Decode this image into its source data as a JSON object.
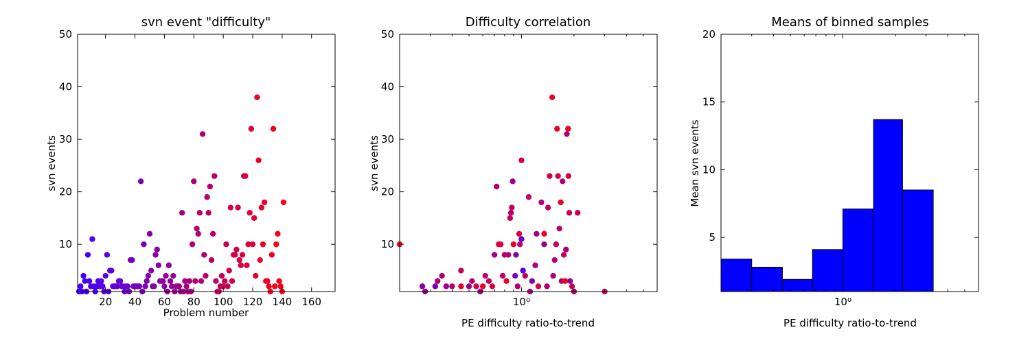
{
  "chart_data": [
    {
      "type": "scatter",
      "title": "svn event \"difficulty\"",
      "xlabel": "Problem number",
      "ylabel": "svn events",
      "xlim": [
        1,
        176
      ],
      "ylim": [
        1,
        50
      ],
      "xticks": [
        20,
        40,
        60,
        80,
        100,
        120,
        140,
        160
      ],
      "yticks": [
        10,
        20,
        30,
        40,
        50
      ],
      "color_gradient": [
        "#4000ff",
        "#ff0010"
      ],
      "points": [
        [
          2,
          1
        ],
        [
          3,
          2
        ],
        [
          4,
          1
        ],
        [
          5,
          4
        ],
        [
          6,
          3
        ],
        [
          7,
          1
        ],
        [
          8,
          8
        ],
        [
          9,
          3
        ],
        [
          10,
          2
        ],
        [
          11,
          11
        ],
        [
          12,
          2
        ],
        [
          13,
          1
        ],
        [
          14,
          2
        ],
        [
          15,
          3
        ],
        [
          16,
          2
        ],
        [
          17,
          3
        ],
        [
          18,
          2
        ],
        [
          19,
          1
        ],
        [
          20,
          4
        ],
        [
          21,
          8
        ],
        [
          22,
          1
        ],
        [
          23,
          5
        ],
        [
          24,
          5
        ],
        [
          25,
          2
        ],
        [
          26,
          2
        ],
        [
          27,
          2
        ],
        [
          28,
          2
        ],
        [
          29,
          3
        ],
        [
          30,
          3
        ],
        [
          31,
          2
        ],
        [
          32,
          2
        ],
        [
          33,
          1
        ],
        [
          34,
          2
        ],
        [
          35,
          2
        ],
        [
          36,
          1
        ],
        [
          37,
          7
        ],
        [
          38,
          7
        ],
        [
          39,
          2
        ],
        [
          40,
          2
        ],
        [
          41,
          2
        ],
        [
          42,
          2
        ],
        [
          43,
          2
        ],
        [
          44,
          22
        ],
        [
          45,
          1
        ],
        [
          46,
          10
        ],
        [
          47,
          2
        ],
        [
          48,
          3
        ],
        [
          49,
          4
        ],
        [
          50,
          12
        ],
        [
          51,
          5
        ],
        [
          52,
          2
        ],
        [
          53,
          2
        ],
        [
          54,
          8
        ],
        [
          55,
          9
        ],
        [
          56,
          6
        ],
        [
          57,
          3
        ],
        [
          58,
          3
        ],
        [
          59,
          3
        ],
        [
          60,
          2
        ],
        [
          61,
          4
        ],
        [
          62,
          1
        ],
        [
          63,
          6
        ],
        [
          64,
          3
        ],
        [
          65,
          2
        ],
        [
          66,
          4
        ],
        [
          67,
          1
        ],
        [
          68,
          2
        ],
        [
          69,
          2
        ],
        [
          70,
          2
        ],
        [
          71,
          1
        ],
        [
          72,
          16
        ],
        [
          73,
          1
        ],
        [
          74,
          3
        ],
        [
          75,
          2
        ],
        [
          76,
          1
        ],
        [
          77,
          3
        ],
        [
          78,
          1
        ],
        [
          79,
          10
        ],
        [
          80,
          22
        ],
        [
          81,
          3
        ],
        [
          82,
          13
        ],
        [
          83,
          12
        ],
        [
          84,
          16
        ],
        [
          85,
          3
        ],
        [
          86,
          31
        ],
        [
          87,
          8
        ],
        [
          88,
          4
        ],
        [
          89,
          19
        ],
        [
          90,
          16
        ],
        [
          91,
          21
        ],
        [
          92,
          7
        ],
        [
          93,
          12
        ],
        [
          94,
          23
        ],
        [
          95,
          3
        ],
        [
          96,
          1
        ],
        [
          97,
          1
        ],
        [
          98,
          2
        ],
        [
          99,
          4
        ],
        [
          100,
          2
        ],
        [
          101,
          3
        ],
        [
          102,
          10
        ],
        [
          103,
          2
        ],
        [
          104,
          5
        ],
        [
          105,
          17
        ],
        [
          106,
          3
        ],
        [
          107,
          8
        ],
        [
          108,
          8
        ],
        [
          109,
          9
        ],
        [
          110,
          17
        ],
        [
          111,
          7
        ],
        [
          112,
          6
        ],
        [
          113,
          8
        ],
        [
          114,
          23
        ],
        [
          115,
          23
        ],
        [
          116,
          6
        ],
        [
          117,
          10
        ],
        [
          118,
          16
        ],
        [
          119,
          32
        ],
        [
          120,
          10
        ],
        [
          121,
          15
        ],
        [
          122,
          4
        ],
        [
          123,
          38
        ],
        [
          124,
          26
        ],
        [
          125,
          7
        ],
        [
          126,
          17
        ],
        [
          127,
          10
        ],
        [
          128,
          18
        ],
        [
          129,
          3
        ],
        [
          130,
          3
        ],
        [
          131,
          2
        ],
        [
          132,
          1
        ],
        [
          133,
          8
        ],
        [
          134,
          32
        ],
        [
          135,
          2
        ],
        [
          136,
          10
        ],
        [
          137,
          12
        ],
        [
          138,
          3
        ],
        [
          139,
          2
        ],
        [
          140,
          1
        ],
        [
          141,
          18
        ]
      ]
    },
    {
      "type": "scatter",
      "title": "Difficulty correlation",
      "xlabel": "PE difficulty ratio-to-trend",
      "ylabel": "svn events",
      "xscale": "log",
      "xlim": [
        0.2,
        6.0
      ],
      "ylim": [
        1,
        50
      ],
      "xticks": [
        1.0
      ],
      "xtick_labels": [
        "10⁰"
      ],
      "yticks": [
        10,
        20,
        30,
        40,
        50
      ],
      "color_gradient": [
        "#4000ff",
        "#ff0010"
      ],
      "points": [
        [
          0.2,
          10,
          0.9
        ],
        [
          0.27,
          2,
          0.4
        ],
        [
          0.28,
          1,
          0.5
        ],
        [
          0.32,
          2,
          0.3
        ],
        [
          0.33,
          3,
          0.5
        ],
        [
          0.35,
          4,
          0.6
        ],
        [
          0.37,
          2,
          0.5
        ],
        [
          0.4,
          2,
          0.6
        ],
        [
          0.45,
          5,
          0.7
        ],
        [
          0.45,
          2,
          0.9
        ],
        [
          0.5,
          2,
          0.5
        ],
        [
          0.52,
          3,
          0.6
        ],
        [
          0.55,
          2,
          0.8
        ],
        [
          0.58,
          1,
          0.5
        ],
        [
          0.6,
          2,
          0.9
        ],
        [
          0.62,
          4,
          0.6
        ],
        [
          0.65,
          3,
          0.7
        ],
        [
          0.68,
          2,
          0.8
        ],
        [
          0.7,
          8,
          0.5
        ],
        [
          0.72,
          21,
          0.6
        ],
        [
          0.74,
          10,
          0.9
        ],
        [
          0.76,
          10,
          0.8
        ],
        [
          0.78,
          4,
          0.7
        ],
        [
          0.8,
          8,
          0.6
        ],
        [
          0.82,
          3,
          0.9
        ],
        [
          0.84,
          8,
          0.6
        ],
        [
          0.86,
          15,
          0.7
        ],
        [
          0.87,
          16,
          0.6
        ],
        [
          0.88,
          17,
          0.7
        ],
        [
          0.89,
          22,
          0.5
        ],
        [
          0.9,
          10,
          0.9
        ],
        [
          0.92,
          4,
          0.3
        ],
        [
          0.93,
          8,
          0.4
        ],
        [
          0.95,
          2,
          0.6
        ],
        [
          0.97,
          12,
          0.8
        ],
        [
          0.98,
          10,
          0.6
        ],
        [
          1.0,
          26,
          0.8
        ],
        [
          1.0,
          11,
          0.2
        ],
        [
          1.02,
          5,
          0.1
        ],
        [
          1.05,
          4,
          0.7
        ],
        [
          1.1,
          19,
          0.7
        ],
        [
          1.12,
          1,
          0.5
        ],
        [
          1.15,
          3,
          0.4
        ],
        [
          1.2,
          6,
          0.6
        ],
        [
          1.22,
          12,
          0.5
        ],
        [
          1.25,
          2,
          0.8
        ],
        [
          1.3,
          18,
          0.6
        ],
        [
          1.35,
          12,
          0.9
        ],
        [
          1.35,
          10,
          0.5
        ],
        [
          1.4,
          2,
          0.6
        ],
        [
          1.42,
          17,
          0.7
        ],
        [
          1.45,
          23,
          0.8
        ],
        [
          1.5,
          38,
          0.9
        ],
        [
          1.52,
          4,
          0.5
        ],
        [
          1.55,
          7,
          0.6
        ],
        [
          1.58,
          10,
          0.7
        ],
        [
          1.6,
          32,
          0.9
        ],
        [
          1.62,
          23,
          0.8
        ],
        [
          1.65,
          13,
          0.6
        ],
        [
          1.68,
          18,
          0.9
        ],
        [
          1.7,
          3,
          0.6
        ],
        [
          1.72,
          22,
          0.6
        ],
        [
          1.75,
          8,
          0.7
        ],
        [
          1.78,
          3,
          0.9
        ],
        [
          1.8,
          9,
          0.6
        ],
        [
          1.82,
          31,
          0.6
        ],
        [
          1.85,
          32,
          0.9
        ],
        [
          1.86,
          23,
          0.8
        ],
        [
          1.88,
          16,
          0.7
        ],
        [
          1.9,
          3,
          0.5
        ],
        [
          1.95,
          2,
          0.7
        ],
        [
          2.0,
          1,
          0.6
        ],
        [
          2.1,
          16,
          0.7
        ],
        [
          3.0,
          1,
          0.6
        ]
      ]
    },
    {
      "type": "bar",
      "title": "Means of binned samples",
      "xlabel": "PE difficulty ratio-to-trend",
      "ylabel": "Mean svn events",
      "xscale": "log",
      "xlim": [
        0.2,
        6.0
      ],
      "ylim": [
        1,
        20
      ],
      "xticks": [
        1.0
      ],
      "xtick_labels": [
        "10⁰"
      ],
      "yticks": [
        5,
        10,
        15,
        20
      ],
      "bar_color": "#0000ff",
      "bins": [
        [
          0.2,
          0.3,
          3.4
        ],
        [
          0.3,
          0.45,
          2.8
        ],
        [
          0.45,
          0.67,
          1.9
        ],
        [
          0.67,
          1.0,
          4.1
        ],
        [
          1.0,
          1.5,
          7.1
        ],
        [
          1.5,
          2.2,
          13.7
        ],
        [
          2.2,
          3.3,
          8.5
        ]
      ]
    }
  ]
}
